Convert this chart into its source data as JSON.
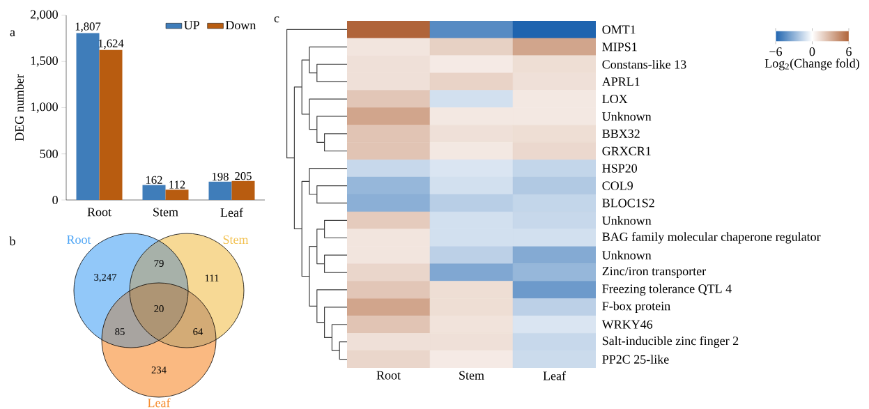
{
  "chart_data": [
    {
      "type": "bar",
      "categories": [
        "Root",
        "Stem",
        "Leaf"
      ],
      "series": [
        {
          "name": "UP",
          "color": "#3f7dba",
          "values": [
            1807,
            162,
            198
          ],
          "value_labels": [
            "1,807",
            "162",
            "198"
          ]
        },
        {
          "name": "Down",
          "color": "#b85c10",
          "values": [
            1624,
            112,
            205
          ],
          "value_labels": [
            "1,624",
            "112",
            "205"
          ]
        }
      ],
      "ylabel": "DEG number",
      "ylim": [
        0,
        2000
      ],
      "yticks": [
        0,
        500,
        {
          "value": 1000,
          "label": "1,000"
        },
        {
          "value": 1500,
          "label": "1,500"
        },
        {
          "value": 2000,
          "label": "2,000"
        }
      ],
      "legend": "top right",
      "annotations": [
        "a"
      ]
    },
    {
      "type": "other",
      "categories": [
        "Root",
        "Stem",
        "Leaf"
      ],
      "colors": [
        "#4aa3f5",
        "#f2c04e",
        "#f68b2c"
      ],
      "annotations": [
        "b",
        "3,247",
        "111",
        "234",
        "79",
        "85",
        "64",
        "20"
      ]
    },
    {
      "type": "heatmap",
      "categories": [
        "Root",
        "Stem",
        "Leaf"
      ],
      "y_categories": [
        "OMT1",
        "MIPS1",
        "Constans-like 13",
        "APRL1",
        "LOX",
        "Unknown",
        "BBX32",
        "GRXCR1",
        "HSP20",
        "COL9",
        "BLOC1S2",
        "Unknown",
        "BAG family molecular chaperone regulator",
        "Unknown",
        "Zinc/iron transporter",
        "Freezing tolerance QTL 4",
        "F-box protein",
        "WRKY46",
        "Salt-inducible zinc finger 2",
        "PP2C 25-like"
      ],
      "cells": [
        [
          6,
          -4.5,
          -6
        ],
        [
          1,
          1.8,
          3.5
        ],
        [
          1.2,
          0.8,
          1.3
        ],
        [
          1.2,
          1.7,
          1.2
        ],
        [
          2.2,
          -1.2,
          0.9
        ],
        [
          3.5,
          0.9,
          0.9
        ],
        [
          2.3,
          1.2,
          1.3
        ],
        [
          2.3,
          0.9,
          1.5
        ],
        [
          -1.5,
          -1,
          -1.6
        ],
        [
          -2.8,
          -1.2,
          -2.1
        ],
        [
          -3.1,
          -1.9,
          -1.6
        ],
        [
          2,
          -1.2,
          -1.5
        ],
        [
          1,
          -1.2,
          -1.2
        ],
        [
          1,
          -1.8,
          -3.3
        ],
        [
          1.6,
          -3.4,
          -2.8
        ],
        [
          2.2,
          1.3,
          -3.9
        ],
        [
          3.5,
          1.3,
          -1.8
        ],
        [
          2.3,
          1.1,
          -1
        ],
        [
          1.2,
          1.2,
          -1.5
        ],
        [
          1.6,
          0.8,
          -1.4
        ]
      ],
      "clim": [
        -6,
        6
      ],
      "cticks": [
        {
          "value": -6,
          "label": "−6"
        },
        0,
        6
      ],
      "clabel": "Log$_{2}$(Change fold)",
      "annotations": [
        "c"
      ]
    }
  ]
}
